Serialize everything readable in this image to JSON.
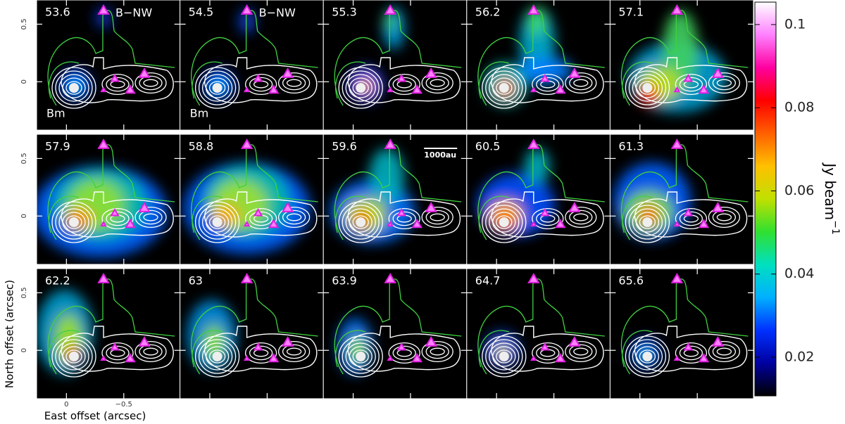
{
  "chart_data": {
    "type": "channel-maps",
    "x_label": "East offset (arcsec)",
    "y_label": "North offset (arcsec)",
    "xlim": [
      0.26,
      -0.99
    ],
    "ylim": [
      -0.42,
      0.71
    ],
    "xticks": [
      0,
      {
        "value": -0.5,
        "label": "−0.5"
      }
    ],
    "yticks": [
      0,
      0.5
    ],
    "panels": [
      {
        "velocity": 53.6,
        "north_label": "B−NW",
        "source_label": "Bm"
      },
      {
        "velocity": 54.5,
        "north_label": "B−NW",
        "source_label": "Bm"
      },
      {
        "velocity": 55.3
      },
      {
        "velocity": 56.2
      },
      {
        "velocity": 57.1
      },
      {
        "velocity": 57.9
      },
      {
        "velocity": 58.8
      },
      {
        "velocity": 59.6,
        "scale_bar": "1000au"
      },
      {
        "velocity": 60.5
      },
      {
        "velocity": 61.3
      },
      {
        "velocity": 62.2
      },
      {
        "velocity": 63
      },
      {
        "velocity": 63.9
      },
      {
        "velocity": 64.7
      },
      {
        "velocity": 65.6
      }
    ],
    "colorbar": {
      "label": "Jy beam",
      "label_sup": "−1",
      "lim": [
        0.0107,
        0.1054
      ],
      "ticks": [
        0.02,
        0.04,
        0.06,
        0.08,
        0.1
      ],
      "colormap": [
        "#000000",
        "#0000a0",
        "#0030ff",
        "#00b0ff",
        "#00e0c0",
        "#30e030",
        "#c0e000",
        "#ffc000",
        "#ff6000",
        "#ff0000",
        "#ff00a0",
        "#ff80ff",
        "#ffffff"
      ]
    }
  }
}
